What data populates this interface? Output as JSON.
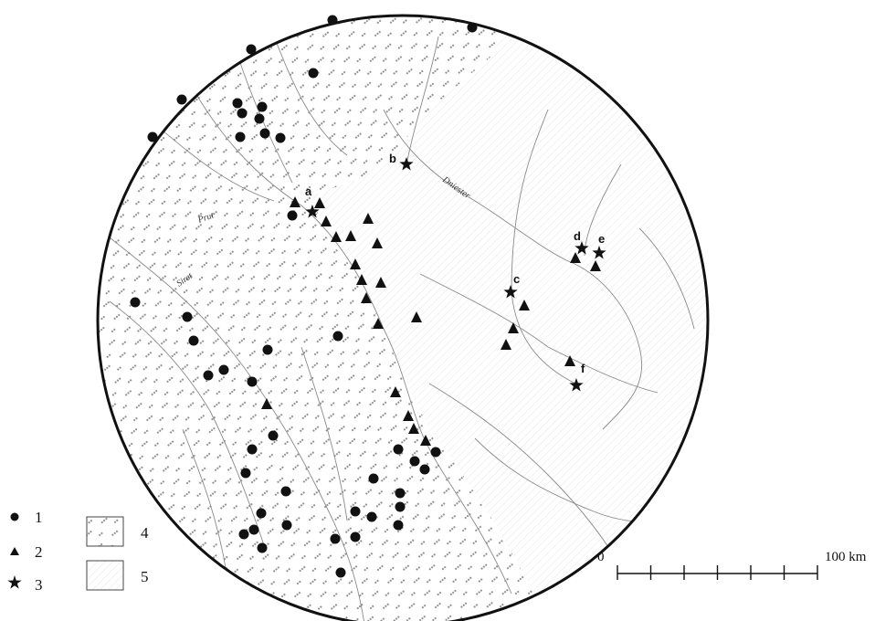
{
  "rivers": {
    "prut": "Prut",
    "siret": "Siret",
    "dniester": "Dniester"
  },
  "sites": [
    "a",
    "b",
    "c",
    "d",
    "e",
    "f"
  ],
  "legend": {
    "items": [
      {
        "symbol": "circle",
        "label": "1"
      },
      {
        "symbol": "triangle",
        "label": "2"
      },
      {
        "symbol": "star",
        "label": "3"
      },
      {
        "symbol": "hatched-box",
        "label": "4"
      },
      {
        "symbol": "plain-box",
        "label": "5"
      }
    ]
  },
  "scale": {
    "start_label": "0",
    "end_label": "100 km",
    "divisions": 6
  },
  "colors": {
    "ink": "#111111",
    "river": "#8a8a8a",
    "hatch": "#9a9a9a",
    "background": "#ffffff"
  }
}
